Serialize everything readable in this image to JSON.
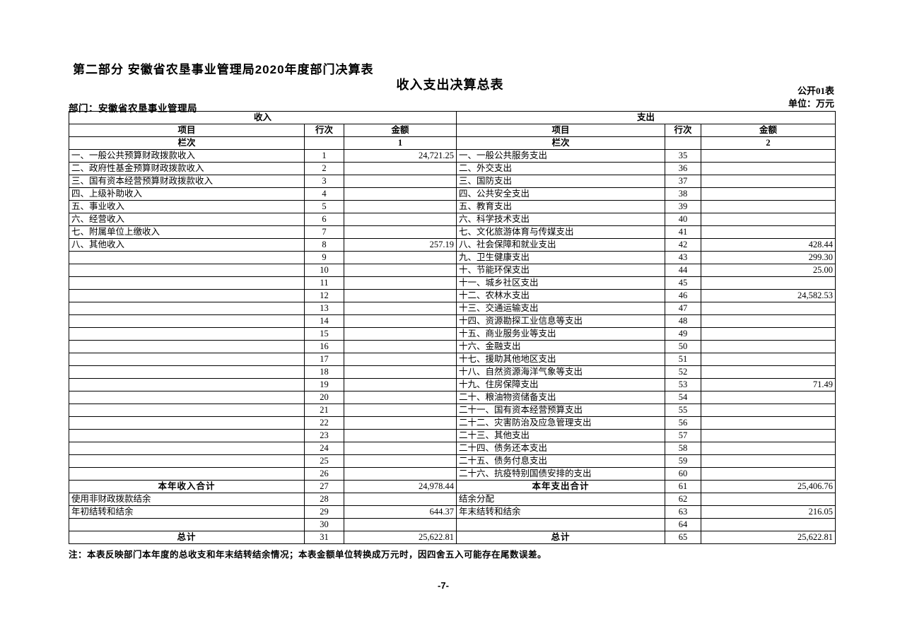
{
  "page": {
    "part_title": "第二部分 安徽省农垦事业管理局2020年度部门决算表",
    "table_title": "收入支出决算总表",
    "table_code": "公开01表",
    "department_label": "部门：安徽省农垦事业管理局",
    "unit_label": "单位：万元",
    "note": "注：本表反映部门本年度的总收支和年末结转结余情况；本表金额单位转换成万元时，因四舍五入可能存在尾数误差。",
    "page_number": "-7-"
  },
  "colors": {
    "text": "#000000",
    "background": "#ffffff",
    "border": "#000000"
  },
  "table": {
    "income_header": "收入",
    "expense_header": "支出",
    "col_item": "项目",
    "col_row": "行次",
    "col_amount": "金额",
    "col_index_label": "栏次",
    "income_col_index": "1",
    "expense_col_index": "2",
    "rows": [
      {
        "l_item": "一、一般公共预算财政拨款收入",
        "l_row": "1",
        "l_amount": "24,721.25",
        "r_item": "一、一般公共服务支出",
        "r_row": "35",
        "r_amount": ""
      },
      {
        "l_item": "二、政府性基金预算财政拨款收入",
        "l_row": "2",
        "l_amount": "",
        "r_item": "二、外交支出",
        "r_row": "36",
        "r_amount": ""
      },
      {
        "l_item": "三、国有资本经营预算财政拨款收入",
        "l_row": "3",
        "l_amount": "",
        "r_item": "三、国防支出",
        "r_row": "37",
        "r_amount": ""
      },
      {
        "l_item": "四、上级补助收入",
        "l_row": "4",
        "l_amount": "",
        "r_item": "四、公共安全支出",
        "r_row": "38",
        "r_amount": ""
      },
      {
        "l_item": "五、事业收入",
        "l_row": "5",
        "l_amount": "",
        "r_item": "五、教育支出",
        "r_row": "39",
        "r_amount": ""
      },
      {
        "l_item": "六、经营收入",
        "l_row": "6",
        "l_amount": "",
        "r_item": "六、科学技术支出",
        "r_row": "40",
        "r_amount": ""
      },
      {
        "l_item": "七、附属单位上缴收入",
        "l_row": "7",
        "l_amount": "",
        "r_item": "七、文化旅游体育与传媒支出",
        "r_row": "41",
        "r_amount": ""
      },
      {
        "l_item": "八、其他收入",
        "l_row": "8",
        "l_amount": "257.19",
        "r_item": "八、社会保障和就业支出",
        "r_row": "42",
        "r_amount": "428.44"
      },
      {
        "l_item": "",
        "l_row": "9",
        "l_amount": "",
        "r_item": "九、卫生健康支出",
        "r_row": "43",
        "r_amount": "299.30"
      },
      {
        "l_item": "",
        "l_row": "10",
        "l_amount": "",
        "r_item": "十、节能环保支出",
        "r_row": "44",
        "r_amount": "25.00"
      },
      {
        "l_item": "",
        "l_row": "11",
        "l_amount": "",
        "r_item": "十一、城乡社区支出",
        "r_row": "45",
        "r_amount": ""
      },
      {
        "l_item": "",
        "l_row": "12",
        "l_amount": "",
        "r_item": "十二、农林水支出",
        "r_row": "46",
        "r_amount": "24,582.53"
      },
      {
        "l_item": "",
        "l_row": "13",
        "l_amount": "",
        "r_item": "十三、交通运输支出",
        "r_row": "47",
        "r_amount": ""
      },
      {
        "l_item": "",
        "l_row": "14",
        "l_amount": "",
        "r_item": "十四、资源勘探工业信息等支出",
        "r_row": "48",
        "r_amount": ""
      },
      {
        "l_item": "",
        "l_row": "15",
        "l_amount": "",
        "r_item": "十五、商业服务业等支出",
        "r_row": "49",
        "r_amount": ""
      },
      {
        "l_item": "",
        "l_row": "16",
        "l_amount": "",
        "r_item": "十六、金融支出",
        "r_row": "50",
        "r_amount": ""
      },
      {
        "l_item": "",
        "l_row": "17",
        "l_amount": "",
        "r_item": "十七、援助其他地区支出",
        "r_row": "51",
        "r_amount": ""
      },
      {
        "l_item": "",
        "l_row": "18",
        "l_amount": "",
        "r_item": "十八、自然资源海洋气象等支出",
        "r_row": "52",
        "r_amount": ""
      },
      {
        "l_item": "",
        "l_row": "19",
        "l_amount": "",
        "r_item": "十九、住房保障支出",
        "r_row": "53",
        "r_amount": "71.49"
      },
      {
        "l_item": "",
        "l_row": "20",
        "l_amount": "",
        "r_item": "二十、粮油物资储备支出",
        "r_row": "54",
        "r_amount": ""
      },
      {
        "l_item": "",
        "l_row": "21",
        "l_amount": "",
        "r_item": "二十一、国有资本经营预算支出",
        "r_row": "55",
        "r_amount": ""
      },
      {
        "l_item": "",
        "l_row": "22",
        "l_amount": "",
        "r_item": "二十二、灾害防治及应急管理支出",
        "r_row": "56",
        "r_amount": ""
      },
      {
        "l_item": "",
        "l_row": "23",
        "l_amount": "",
        "r_item": "二十三、其他支出",
        "r_row": "57",
        "r_amount": ""
      },
      {
        "l_item": "",
        "l_row": "24",
        "l_amount": "",
        "r_item": "二十四、债务还本支出",
        "r_row": "58",
        "r_amount": ""
      },
      {
        "l_item": "",
        "l_row": "25",
        "l_amount": "",
        "r_item": "二十五、债务付息支出",
        "r_row": "59",
        "r_amount": ""
      },
      {
        "l_item": "",
        "l_row": "26",
        "l_amount": "",
        "r_item": "二十六、抗疫特别国债安排的支出",
        "r_row": "60",
        "r_amount": ""
      },
      {
        "l_item": "本年收入合计",
        "l_row": "27",
        "l_amount": "24,978.44",
        "r_item": "本年支出合计",
        "r_row": "61",
        "r_amount": "25,406.76",
        "total": true
      },
      {
        "l_item": "使用非财政拨款结余",
        "l_row": "28",
        "l_amount": "",
        "r_item": "结余分配",
        "r_row": "62",
        "r_amount": ""
      },
      {
        "l_item": "年初结转和结余",
        "l_row": "29",
        "l_amount": "644.37",
        "r_item": "年末结转和结余",
        "r_row": "63",
        "r_amount": "216.05"
      },
      {
        "l_item": "",
        "l_row": "30",
        "l_amount": "",
        "r_item": "",
        "r_row": "64",
        "r_amount": ""
      },
      {
        "l_item": "总计",
        "l_row": "31",
        "l_amount": "25,622.81",
        "r_item": "总计",
        "r_row": "65",
        "r_amount": "25,622.81",
        "total": true
      }
    ]
  }
}
